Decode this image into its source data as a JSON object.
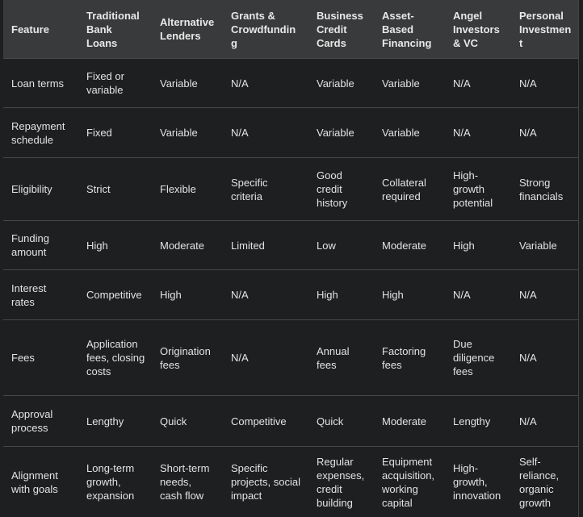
{
  "table": {
    "header": [
      "Feature",
      "Traditional Bank Loans",
      "Alternative Lenders",
      "Grants & Crowdfunding",
      "Business Credit Cards",
      "Asset-Based Financing",
      "Angel Investors & VC",
      "Personal Investment"
    ],
    "rows": [
      [
        "Loan terms",
        "Fixed or variable",
        "Variable",
        "N/A",
        "Variable",
        "Variable",
        "N/A",
        "N/A"
      ],
      [
        "Repayment schedule",
        "Fixed",
        "Variable",
        "N/A",
        "Variable",
        "Variable",
        "N/A",
        "N/A"
      ],
      [
        "Eligibility",
        "Strict",
        "Flexible",
        "Specific criteria",
        "Good credit history",
        "Collateral required",
        "High-growth potential",
        "Strong financials"
      ],
      [
        "Funding amount",
        "High",
        "Moderate",
        "Limited",
        "Low",
        "Moderate",
        "High",
        "Variable"
      ],
      [
        "Interest rates",
        "Competitive",
        "High",
        "N/A",
        "High",
        "High",
        "N/A",
        "N/A"
      ],
      [
        "Fees",
        "Application fees, closing costs",
        "Origination fees",
        "N/A",
        "Annual fees",
        "Factoring fees",
        "Due diligence fees",
        "N/A"
      ],
      [
        "Approval process",
        "Lengthy",
        "Quick",
        "Competitive",
        "Quick",
        "Moderate",
        "Lengthy",
        "N/A"
      ],
      [
        "Alignment with goals",
        "Long-term growth, expansion",
        "Short-term needs, cash flow",
        "Specific projects, social impact",
        "Regular expenses, credit building",
        "Equipment acquisition, working capital",
        "High-growth, innovation",
        "Self-reliance, organic growth"
      ]
    ]
  }
}
